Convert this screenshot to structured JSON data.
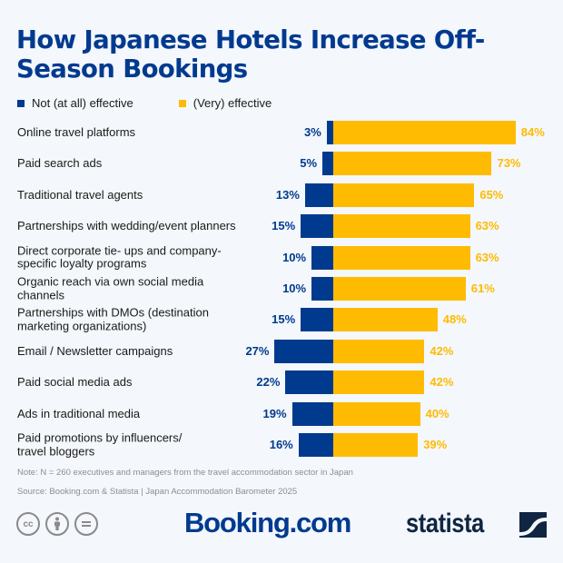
{
  "header": {
    "title": "How Japanese Hotels Increase Off-Season Bookings"
  },
  "legend": [
    {
      "label": "Not (at all) effective",
      "color": "#003a8f"
    },
    {
      "label": "(Very) effective",
      "color": "#febb02"
    }
  ],
  "rows": [
    {
      "label": "Online travel platforms",
      "neg": "3%",
      "pos": "84%"
    },
    {
      "label": "Paid search ads",
      "neg": "5%",
      "pos": "73%"
    },
    {
      "label": "Traditional travel agents",
      "neg": "13%",
      "pos": "65%"
    },
    {
      "label": "Partnerships with wedding/event planners",
      "neg": "15%",
      "pos": "63%"
    },
    {
      "label": "Direct corporate tie- ups and company-specific loyalty programs",
      "neg": "10%",
      "pos": "63%"
    },
    {
      "label": "Organic reach via own social media channels",
      "neg": "10%",
      "pos": "61%"
    },
    {
      "label": "Partnerships with DMOs (destination marketing organizations)",
      "neg": "15%",
      "pos": "48%"
    },
    {
      "label": "Email / Newsletter campaigns",
      "neg": "27%",
      "pos": "42%"
    },
    {
      "label": "Paid social media ads",
      "neg": "22%",
      "pos": "42%"
    },
    {
      "label": "Ads in traditional media",
      "neg": "19%",
      "pos": "40%"
    },
    {
      "label": "Paid promotions by influencers/ travel bloggers",
      "neg": "16%",
      "pos": "39%"
    }
  ],
  "footer": {
    "note": "Note: N = 260 executives and managers from the travel accommodation sector in Japan",
    "source": "Source: Booking.com & Statista | Japan Accommodation Barometer 2025",
    "cc_icons": [
      "cc-icon",
      "by-attribution-icon",
      "no-derivatives-icon"
    ],
    "cc_label": "cc",
    "by_label": "i",
    "nd_label": "=",
    "booking_logo": "Booking.com",
    "statista_logo": "statista"
  },
  "colors": {
    "not_effective": "#003a8f",
    "effective": "#febb02",
    "background": "#f4f7fb",
    "title": "#003a8f"
  },
  "chart_data": {
    "type": "bar",
    "orientation": "horizontal-diverging",
    "title": "How Japanese Hotels Increase Off-Season Bookings",
    "categories": [
      "Online travel platforms",
      "Paid search ads",
      "Traditional travel agents",
      "Partnerships with wedding/event planners",
      "Direct corporate tie- ups and company-specific loyalty programs",
      "Organic reach via own social media channels",
      "Partnerships with DMOs (destination marketing organizations)",
      "Email / Newsletter campaigns",
      "Paid social media ads",
      "Ads in traditional media",
      "Paid promotions by influencers/ travel bloggers"
    ],
    "series": [
      {
        "name": "Not (at all) effective",
        "color": "#003a8f",
        "values": [
          3,
          5,
          13,
          15,
          10,
          10,
          15,
          27,
          22,
          19,
          16
        ]
      },
      {
        "name": "(Very) effective",
        "color": "#febb02",
        "values": [
          84,
          73,
          65,
          63,
          63,
          61,
          48,
          42,
          42,
          40,
          39
        ]
      }
    ],
    "unit": "%",
    "legend_position": "top",
    "grid": false,
    "xlabel": "",
    "ylabel": "",
    "note": "Note: N = 260 executives and managers from the travel accommodation sector in Japan",
    "source": "Source: Booking.com & Statista | Japan Accommodation Barometer 2025"
  }
}
